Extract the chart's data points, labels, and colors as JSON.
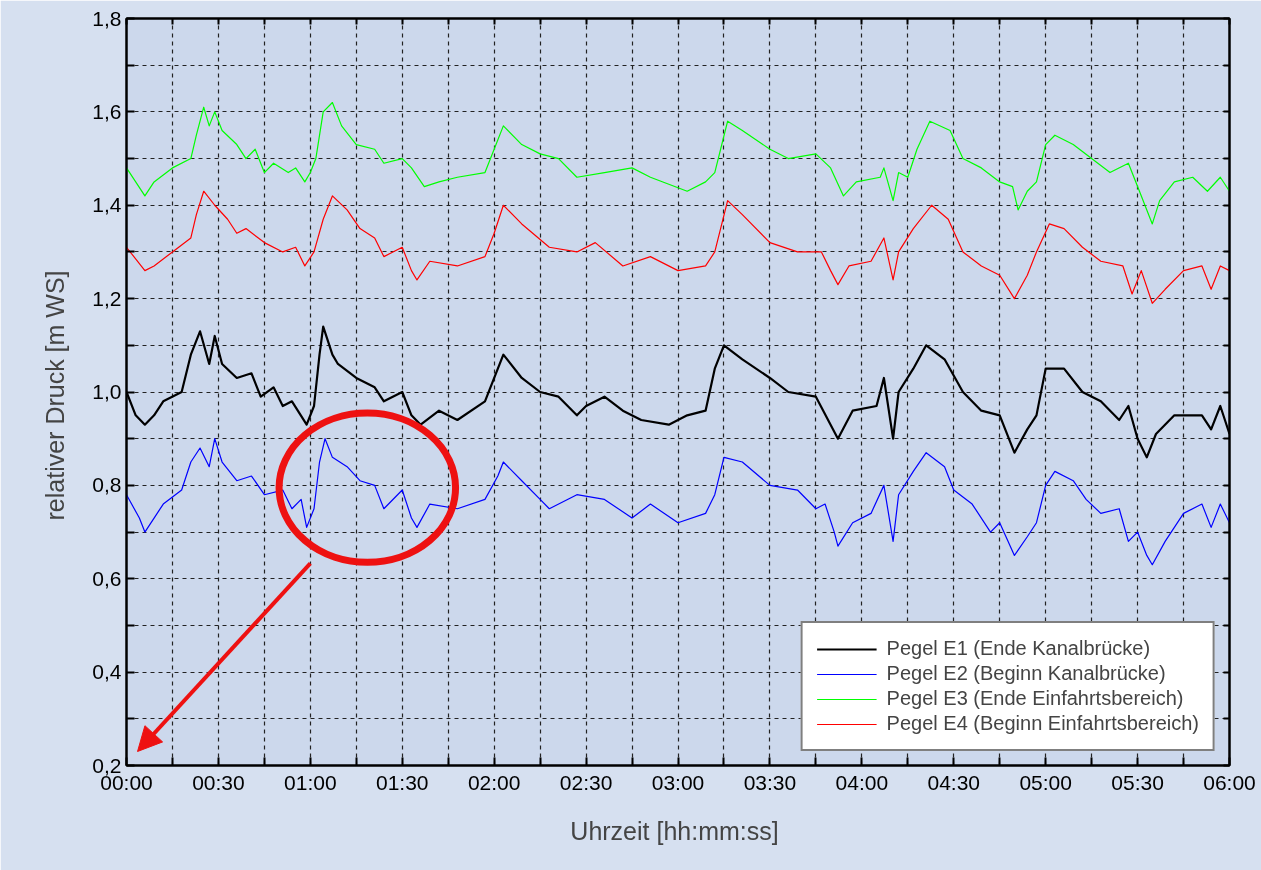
{
  "chart_data": {
    "type": "line",
    "xlabel": "Uhrzeit  [hh:mm:ss]",
    "ylabel": "relativer Druck  [m WS]",
    "xlim": [
      0,
      6
    ],
    "ylim": [
      0.2,
      1.8
    ],
    "xticks": [
      {
        "value": 0,
        "label": "00:00"
      },
      {
        "value": 0.25,
        "label": null
      },
      {
        "value": 0.5,
        "label": "00:30"
      },
      {
        "value": 0.75,
        "label": null
      },
      {
        "value": 1,
        "label": "01:00"
      },
      {
        "value": 1.25,
        "label": null
      },
      {
        "value": 1.5,
        "label": "01:30"
      },
      {
        "value": 1.75,
        "label": null
      },
      {
        "value": 2,
        "label": "02:00"
      },
      {
        "value": 2.25,
        "label": null
      },
      {
        "value": 2.5,
        "label": "02:30"
      },
      {
        "value": 2.75,
        "label": null
      },
      {
        "value": 3,
        "label": "03:00"
      },
      {
        "value": 3.25,
        "label": null
      },
      {
        "value": 3.5,
        "label": "03:30"
      },
      {
        "value": 3.75,
        "label": null
      },
      {
        "value": 4,
        "label": "04:00"
      },
      {
        "value": 4.25,
        "label": null
      },
      {
        "value": 4.5,
        "label": "04:30"
      },
      {
        "value": 4.75,
        "label": null
      },
      {
        "value": 5,
        "label": "05:00"
      },
      {
        "value": 5.25,
        "label": null
      },
      {
        "value": 5.5,
        "label": "05:30"
      },
      {
        "value": 5.75,
        "label": null
      },
      {
        "value": 6,
        "label": "06:00"
      }
    ],
    "yticks": [
      {
        "value": 0.2,
        "label": "0,2"
      },
      {
        "value": 0.3,
        "label": null
      },
      {
        "value": 0.4,
        "label": "0,4"
      },
      {
        "value": 0.5,
        "label": null
      },
      {
        "value": 0.6,
        "label": "0,6"
      },
      {
        "value": 0.7,
        "label": null
      },
      {
        "value": 0.8,
        "label": "0,8"
      },
      {
        "value": 0.9,
        "label": null
      },
      {
        "value": 1.0,
        "label": "1,0"
      },
      {
        "value": 1.1,
        "label": null
      },
      {
        "value": 1.2,
        "label": "1,2"
      },
      {
        "value": 1.3,
        "label": null
      },
      {
        "value": 1.4,
        "label": "1,4"
      },
      {
        "value": 1.5,
        "label": null
      },
      {
        "value": 1.6,
        "label": "1,6"
      },
      {
        "value": 1.7,
        "label": null
      },
      {
        "value": 1.8,
        "label": "1,8"
      }
    ],
    "grid": true,
    "legend": "bottom right",
    "series": [
      {
        "name": "Pegel E1 (Ende Kanalbrücke)",
        "color": "#000000",
        "x": [
          0,
          0.05,
          0.1,
          0.15,
          0.2,
          0.3,
          0.35,
          0.4,
          0.45,
          0.48,
          0.52,
          0.6,
          0.68,
          0.73,
          0.8,
          0.85,
          0.9,
          0.98,
          1.02,
          1.05,
          1.07,
          1.12,
          1.15,
          1.25,
          1.35,
          1.4,
          1.5,
          1.55,
          1.6,
          1.7,
          1.8,
          1.95,
          2.02,
          2.05,
          2.15,
          2.25,
          2.35,
          2.45,
          2.5,
          2.6,
          2.7,
          2.8,
          2.95,
          3.05,
          3.15,
          3.2,
          3.25,
          3.35,
          3.5,
          3.6,
          3.75,
          3.83,
          3.87,
          3.95,
          4.08,
          4.12,
          4.17,
          4.2,
          4.28,
          4.35,
          4.45,
          4.55,
          4.65,
          4.75,
          4.83,
          4.9,
          4.95,
          5.0,
          5.1,
          5.2,
          5.3,
          5.4,
          5.45,
          5.5,
          5.55,
          5.6,
          5.7,
          5.85,
          5.9,
          5.95,
          6.0
        ],
        "values": [
          1.0,
          0.95,
          0.93,
          0.95,
          0.98,
          1.0,
          1.08,
          1.13,
          1.06,
          1.12,
          1.06,
          1.03,
          1.04,
          0.99,
          1.01,
          0.97,
          0.98,
          0.93,
          0.97,
          1.08,
          1.14,
          1.08,
          1.06,
          1.03,
          1.01,
          0.98,
          1.0,
          0.95,
          0.93,
          0.96,
          0.94,
          0.98,
          1.05,
          1.08,
          1.03,
          1.0,
          0.99,
          0.95,
          0.97,
          0.99,
          0.96,
          0.94,
          0.93,
          0.95,
          0.96,
          1.05,
          1.1,
          1.07,
          1.03,
          1.0,
          0.99,
          0.93,
          0.9,
          0.96,
          0.97,
          1.03,
          0.9,
          1.0,
          1.05,
          1.1,
          1.07,
          1.0,
          0.96,
          0.95,
          0.87,
          0.92,
          0.95,
          1.05,
          1.05,
          1.0,
          0.98,
          0.94,
          0.97,
          0.9,
          0.86,
          0.91,
          0.95,
          0.95,
          0.92,
          0.97,
          0.91
        ]
      },
      {
        "name": "Pegel E2 (Beginn Kanalbrücke)",
        "color": "#0000ff",
        "x": [
          0,
          0.07,
          0.1,
          0.15,
          0.2,
          0.3,
          0.35,
          0.4,
          0.45,
          0.48,
          0.52,
          0.6,
          0.68,
          0.75,
          0.85,
          0.9,
          0.95,
          0.98,
          1.02,
          1.05,
          1.08,
          1.12,
          1.2,
          1.27,
          1.35,
          1.4,
          1.5,
          1.55,
          1.58,
          1.65,
          1.8,
          1.95,
          2.02,
          2.05,
          2.15,
          2.25,
          2.3,
          2.45,
          2.6,
          2.75,
          2.85,
          3.0,
          3.15,
          3.2,
          3.25,
          3.35,
          3.5,
          3.65,
          3.75,
          3.8,
          3.85,
          3.87,
          3.95,
          4.05,
          4.12,
          4.17,
          4.2,
          4.28,
          4.35,
          4.45,
          4.5,
          4.6,
          4.7,
          4.75,
          4.83,
          4.9,
          4.95,
          5.0,
          5.05,
          5.15,
          5.22,
          5.3,
          5.4,
          5.45,
          5.5,
          5.55,
          5.58,
          5.65,
          5.75,
          5.85,
          5.9,
          5.95,
          6.0
        ],
        "values": [
          0.78,
          0.73,
          0.7,
          0.73,
          0.76,
          0.79,
          0.85,
          0.88,
          0.84,
          0.9,
          0.85,
          0.81,
          0.82,
          0.78,
          0.79,
          0.75,
          0.77,
          0.71,
          0.75,
          0.85,
          0.9,
          0.86,
          0.84,
          0.81,
          0.8,
          0.75,
          0.79,
          0.73,
          0.71,
          0.76,
          0.75,
          0.77,
          0.82,
          0.85,
          0.81,
          0.77,
          0.75,
          0.78,
          0.77,
          0.73,
          0.76,
          0.72,
          0.74,
          0.78,
          0.86,
          0.85,
          0.8,
          0.79,
          0.75,
          0.76,
          0.7,
          0.67,
          0.72,
          0.74,
          0.8,
          0.68,
          0.78,
          0.83,
          0.87,
          0.84,
          0.79,
          0.76,
          0.7,
          0.72,
          0.65,
          0.69,
          0.72,
          0.8,
          0.83,
          0.81,
          0.77,
          0.74,
          0.75,
          0.68,
          0.7,
          0.65,
          0.63,
          0.68,
          0.74,
          0.76,
          0.71,
          0.76,
          0.72
        ]
      },
      {
        "name": "Pegel E3 (Ende Einfahrtsbereich)",
        "color": "#00ff00",
        "x": [
          0,
          0.1,
          0.15,
          0.25,
          0.35,
          0.38,
          0.42,
          0.45,
          0.48,
          0.52,
          0.6,
          0.65,
          0.7,
          0.75,
          0.8,
          0.88,
          0.92,
          0.97,
          1.0,
          1.03,
          1.07,
          1.12,
          1.17,
          1.25,
          1.35,
          1.4,
          1.5,
          1.55,
          1.62,
          1.7,
          1.8,
          1.95,
          1.98,
          2.05,
          2.15,
          2.25,
          2.35,
          2.45,
          2.6,
          2.75,
          2.85,
          3.05,
          3.15,
          3.2,
          3.27,
          3.35,
          3.5,
          3.6,
          3.75,
          3.83,
          3.9,
          3.97,
          4.1,
          4.12,
          4.17,
          4.2,
          4.25,
          4.3,
          4.37,
          4.48,
          4.55,
          4.65,
          4.75,
          4.82,
          4.85,
          4.9,
          4.95,
          5.0,
          5.05,
          5.15,
          5.25,
          5.35,
          5.45,
          5.5,
          5.58,
          5.62,
          5.7,
          5.8,
          5.88,
          5.95,
          6.0
        ],
        "values": [
          1.48,
          1.42,
          1.45,
          1.48,
          1.5,
          1.55,
          1.61,
          1.57,
          1.6,
          1.56,
          1.53,
          1.5,
          1.52,
          1.47,
          1.49,
          1.47,
          1.48,
          1.45,
          1.47,
          1.5,
          1.6,
          1.62,
          1.57,
          1.53,
          1.52,
          1.49,
          1.5,
          1.48,
          1.44,
          1.45,
          1.46,
          1.47,
          1.5,
          1.57,
          1.53,
          1.51,
          1.5,
          1.46,
          1.47,
          1.48,
          1.46,
          1.43,
          1.45,
          1.47,
          1.58,
          1.56,
          1.52,
          1.5,
          1.51,
          1.48,
          1.42,
          1.45,
          1.46,
          1.48,
          1.41,
          1.47,
          1.46,
          1.52,
          1.58,
          1.56,
          1.5,
          1.48,
          1.45,
          1.44,
          1.39,
          1.43,
          1.45,
          1.53,
          1.55,
          1.53,
          1.5,
          1.47,
          1.49,
          1.44,
          1.36,
          1.41,
          1.45,
          1.46,
          1.43,
          1.46,
          1.43
        ]
      },
      {
        "name": "Pegel E4 (Beginn Einfahrtsbereich)",
        "color": "#ff0000",
        "x": [
          0,
          0.1,
          0.15,
          0.25,
          0.35,
          0.38,
          0.42,
          0.48,
          0.55,
          0.6,
          0.65,
          0.75,
          0.85,
          0.92,
          0.97,
          1.02,
          1.07,
          1.12,
          1.2,
          1.27,
          1.35,
          1.4,
          1.5,
          1.55,
          1.58,
          1.65,
          1.8,
          1.95,
          2.0,
          2.05,
          2.15,
          2.3,
          2.45,
          2.55,
          2.7,
          2.85,
          3.0,
          3.15,
          3.2,
          3.27,
          3.35,
          3.5,
          3.65,
          3.78,
          3.83,
          3.87,
          3.93,
          4.05,
          4.12,
          4.17,
          4.2,
          4.28,
          4.38,
          4.47,
          4.55,
          4.65,
          4.75,
          4.83,
          4.9,
          4.95,
          5.02,
          5.1,
          5.2,
          5.3,
          5.42,
          5.47,
          5.52,
          5.58,
          5.65,
          5.75,
          5.85,
          5.9,
          5.95,
          6.0
        ],
        "values": [
          1.31,
          1.26,
          1.27,
          1.3,
          1.33,
          1.38,
          1.43,
          1.4,
          1.37,
          1.34,
          1.35,
          1.32,
          1.3,
          1.31,
          1.27,
          1.3,
          1.37,
          1.42,
          1.39,
          1.35,
          1.33,
          1.29,
          1.31,
          1.26,
          1.24,
          1.28,
          1.27,
          1.29,
          1.34,
          1.4,
          1.36,
          1.31,
          1.3,
          1.32,
          1.27,
          1.29,
          1.26,
          1.27,
          1.3,
          1.41,
          1.38,
          1.32,
          1.3,
          1.3,
          1.26,
          1.23,
          1.27,
          1.28,
          1.33,
          1.24,
          1.3,
          1.35,
          1.4,
          1.37,
          1.3,
          1.27,
          1.25,
          1.2,
          1.25,
          1.3,
          1.36,
          1.35,
          1.31,
          1.28,
          1.27,
          1.21,
          1.26,
          1.19,
          1.22,
          1.26,
          1.27,
          1.22,
          1.27,
          1.26
        ]
      }
    ]
  }
}
